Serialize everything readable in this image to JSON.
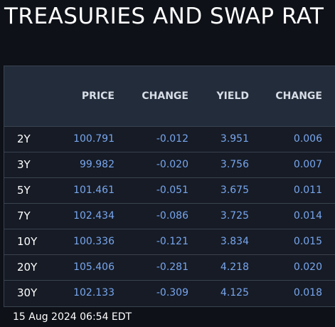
{
  "title": "TREASURIES AND SWAP RAT",
  "table": {
    "headers": {
      "tenor": "",
      "price": "PRICE",
      "change": "CHANGE",
      "yield": "YIELD",
      "yield_change": "CHANGE"
    },
    "rows": [
      {
        "tenor": "2Y",
        "price": "100.791",
        "change": "-0.012",
        "yield": "3.951",
        "yield_change": "0.006"
      },
      {
        "tenor": "3Y",
        "price": "99.982",
        "change": "-0.020",
        "yield": "3.756",
        "yield_change": "0.007"
      },
      {
        "tenor": "5Y",
        "price": "101.461",
        "change": "-0.051",
        "yield": "3.675",
        "yield_change": "0.011"
      },
      {
        "tenor": "7Y",
        "price": "102.434",
        "change": "-0.086",
        "yield": "3.725",
        "yield_change": "0.014"
      },
      {
        "tenor": "10Y",
        "price": "100.336",
        "change": "-0.121",
        "yield": "3.834",
        "yield_change": "0.015"
      },
      {
        "tenor": "20Y",
        "price": "105.406",
        "change": "-0.281",
        "yield": "4.218",
        "yield_change": "0.020"
      },
      {
        "tenor": "30Y",
        "price": "102.133",
        "change": "-0.309",
        "yield": "4.125",
        "yield_change": "0.018"
      }
    ]
  },
  "timestamp": "15 Aug 2024 06:54 EDT",
  "colors": {
    "background": "#0e1118",
    "header_bg": "#232c3a",
    "body_bg": "#161b25",
    "value_text": "#78a6ee",
    "label_text": "#ffffff"
  }
}
